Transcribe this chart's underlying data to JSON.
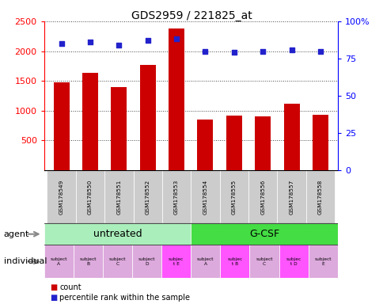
{
  "title": "GDS2959 / 221825_at",
  "samples": [
    "GSM178549",
    "GSM178550",
    "GSM178551",
    "GSM178552",
    "GSM178553",
    "GSM178554",
    "GSM178555",
    "GSM178556",
    "GSM178557",
    "GSM178558"
  ],
  "counts": [
    1470,
    1640,
    1390,
    1770,
    2380,
    850,
    920,
    900,
    1120,
    930
  ],
  "percentile_rank_pct": [
    85,
    86,
    84,
    87,
    88,
    80,
    79,
    80,
    81,
    80
  ],
  "ylim_left": [
    0,
    2500
  ],
  "ylim_right": [
    0,
    100
  ],
  "yticks_left": [
    500,
    1000,
    1500,
    2000,
    2500
  ],
  "yticks_right": [
    0,
    25,
    50,
    75,
    100
  ],
  "bar_color": "#cc0000",
  "dot_color": "#2222cc",
  "agent_untreated_color": "#aaeebb",
  "agent_gcsf_color": "#44dd44",
  "individual_colors": [
    "#ddaadd",
    "#ddaadd",
    "#ddaadd",
    "#ddaadd",
    "#ff55ff",
    "#ddaadd",
    "#ff55ff",
    "#ddaadd",
    "#ff55ff",
    "#ddaadd"
  ],
  "individual_labels": [
    "subject\nA",
    "subject\nB",
    "subject\nC",
    "subject\nD",
    "subjec\nt E",
    "subject\nA",
    "subjec\nt B",
    "subject\nC",
    "subjec\nt D",
    "subject\nE"
  ],
  "agent_labels": [
    "untreated",
    "G-CSF"
  ],
  "n_untreated": 5,
  "n_gcsf": 5,
  "label_agent": "agent",
  "label_individual": "individual",
  "legend_count": "count",
  "legend_percentile": "percentile rank within the sample",
  "sample_bg_color": "#cccccc",
  "grid_color": "#333333"
}
